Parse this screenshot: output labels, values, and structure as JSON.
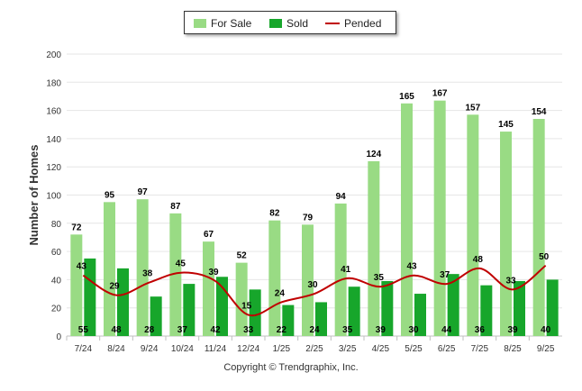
{
  "chart_data": {
    "type": "bar",
    "ylabel": "Number of Homes",
    "xlabel": "",
    "ylim": [
      0,
      200
    ],
    "yticks": [
      0,
      20,
      40,
      60,
      80,
      100,
      120,
      140,
      160,
      180,
      200
    ],
    "categories": [
      "7/24",
      "8/24",
      "9/24",
      "10/24",
      "11/24",
      "12/24",
      "1/25",
      "2/25",
      "3/25",
      "4/25",
      "5/25",
      "6/25",
      "7/25",
      "8/25",
      "9/25"
    ],
    "series": [
      {
        "name": "For Sale",
        "type": "bar",
        "color": "#99db84",
        "values": [
          72,
          95,
          97,
          87,
          67,
          52,
          82,
          79,
          94,
          124,
          165,
          167,
          157,
          145,
          154
        ]
      },
      {
        "name": "Sold",
        "type": "bar",
        "color": "#17a62b",
        "values": [
          55,
          48,
          28,
          37,
          42,
          33,
          22,
          24,
          35,
          39,
          30,
          44,
          36,
          39,
          40
        ]
      },
      {
        "name": "Pended",
        "type": "line",
        "color": "#c00000",
        "values": [
          43,
          29,
          38,
          45,
          39,
          15,
          24,
          30,
          41,
          35,
          43,
          37,
          48,
          33,
          50
        ]
      }
    ],
    "legend_position": "top-center",
    "grid": true
  },
  "legend": {
    "for_sale": "For Sale",
    "sold": "Sold",
    "pended": "Pended"
  },
  "footer": {
    "copyright": "Copyright © Trendgraphix, Inc."
  }
}
